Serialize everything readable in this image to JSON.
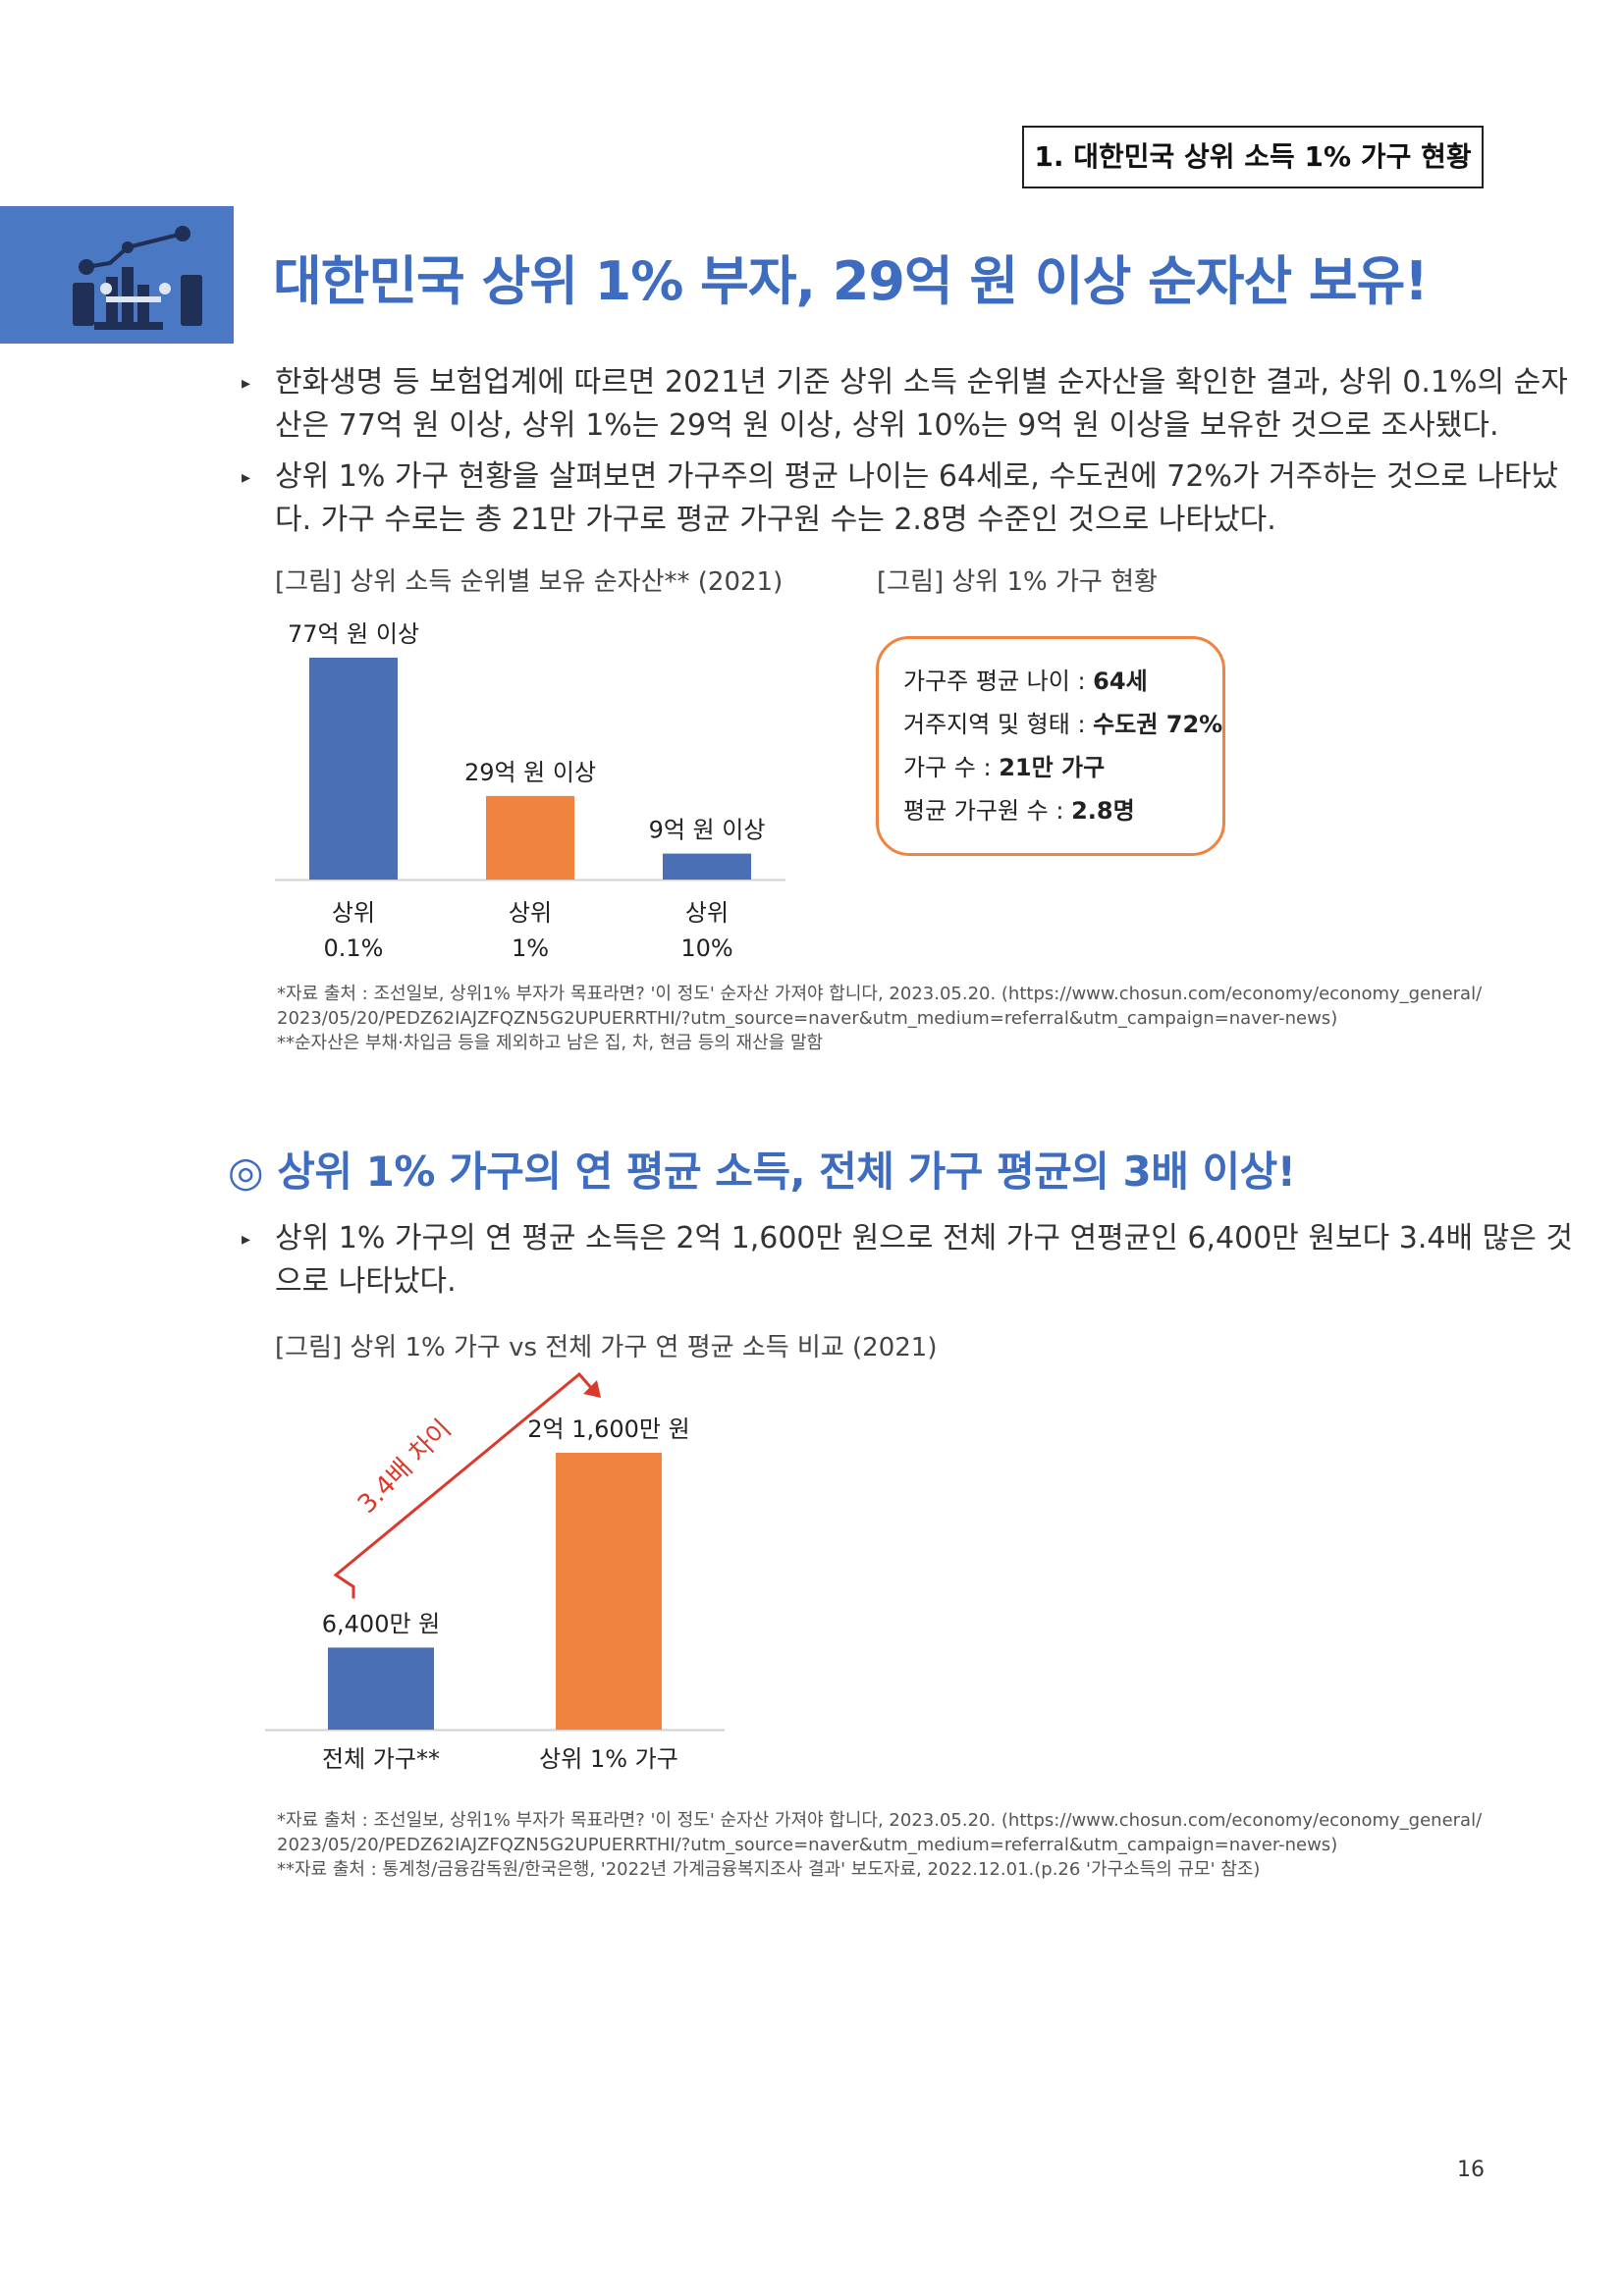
{
  "header": {
    "section_label": "1. 대한민국 상위 소득 1% 가구 현황"
  },
  "title": "대한민국 상위 1% 부자, 29억 원 이상 순자산 보유!",
  "bullets1": [
    {
      "line1": "한화생명 등 보험업계에 따르면 2021년 기준 상위 소득 순위별 순자산을 확인한 결과, 상위 0.1%의 순자",
      "line2": "산은 77억 원 이상, 상위 1%는 29억 원 이상, 상위 10%는 9억 원 이상을 보유한 것으로 조사됐다."
    },
    {
      "line1": "상위 1% 가구 현황을 살펴보면 가구주의 평균 나이는 64세로, 수도권에 72%가 거주하는 것으로 나타났",
      "line2": "다. 가구 수로는 총 21만 가구로 평균 가구원 수는 2.8명 수준인 것으로 나타났다."
    }
  ],
  "fig1": {
    "caption": "[그림] 상위 소득 순위별 보유 순자산** (2021)",
    "bar_labels": [
      "77억 원 이상",
      "29억 원 이상",
      "9억 원 이상"
    ],
    "categories": [
      [
        "상위",
        "0.1%"
      ],
      [
        "상위",
        "1%"
      ],
      [
        "상위",
        "10%"
      ]
    ]
  },
  "fig2": {
    "caption": "[그림] 상위 1% 가구 현황",
    "rows": [
      {
        "label": "가구주 평균 나이 : ",
        "value": "64세"
      },
      {
        "label": "거주지역 및 형태 : ",
        "value": "수도권 72%"
      },
      {
        "label": "가구 수 : ",
        "value": "21만 가구"
      },
      {
        "label": "평균 가구원 수 : ",
        "value": "2.8명"
      }
    ]
  },
  "source1": {
    "line1": "*자료 출처 : 조선일보, 상위1% 부자가 목표라면? '이 정도' 순자산 가져야 합니다, 2023.05.20. (https://www.chosun.com/economy/economy_general/",
    "line2": "2023/05/20/PEDZ62IAJZFQZN5G2UPUERRTHI/?utm_source=naver&utm_medium=referral&utm_campaign=naver-news)",
    "line3": "**순자산은 부채·차입금 등을 제외하고 남은 집, 차, 현금 등의 재산을 말함"
  },
  "section2": {
    "title": "◎ 상위 1% 가구의 연 평균 소득, 전체 가구 평균의 3배 이상!",
    "bullet_line1": "상위 1% 가구의 연 평균 소득은 2억 1,600만 원으로 전체 가구 연평균인 6,400만 원보다 3.4배 많은 것",
    "bullet_line2": "으로 나타났다.",
    "caption": "[그림] 상위 1% 가구 vs 전체 가구 연 평균 소득 비교 (2021)",
    "bar_labels": [
      "6,400만 원",
      "2억 1,600만 원"
    ],
    "categories": [
      "전체 가구**",
      "상위 1% 가구"
    ],
    "diff_label": "3.4배 차이"
  },
  "source2": {
    "line1": "*자료 출처 : 조선일보, 상위1% 부자가 목표라면? '이 정도' 순자산 가져야 합니다, 2023.05.20. (https://www.chosun.com/economy/economy_general/",
    "line2": "2023/05/20/PEDZ62IAJZFQZN5G2UPUERRTHI/?utm_source=naver&utm_medium=referral&utm_campaign=naver-news)",
    "line3": "**자료 출처 : 통계청/금융감독원/한국은행, '2022년 가계금융복지조사 결과' 보도자료, 2022.12.01.(p.26 '가구소득의 규모' 참조)"
  },
  "page_number": "16",
  "colors": {
    "blue": "#4a6fb5",
    "orange": "#f0843f",
    "accent_title": "#3d6cc0",
    "arrow_red": "#d93a2b"
  },
  "chart_data": [
    {
      "type": "bar",
      "categories": [
        "상위 0.1%",
        "상위 1%",
        "상위 10%"
      ],
      "values": [
        77,
        29,
        9
      ],
      "unit": "억 원",
      "colors": [
        "#4a6fb5",
        "#f0843f",
        "#4a6fb5"
      ]
    },
    {
      "type": "bar",
      "categories": [
        "전체 가구**",
        "상위 1% 가구"
      ],
      "values": [
        6400,
        21600
      ],
      "unit": "만 원",
      "colors": [
        "#4a6fb5",
        "#f0843f"
      ]
    }
  ]
}
